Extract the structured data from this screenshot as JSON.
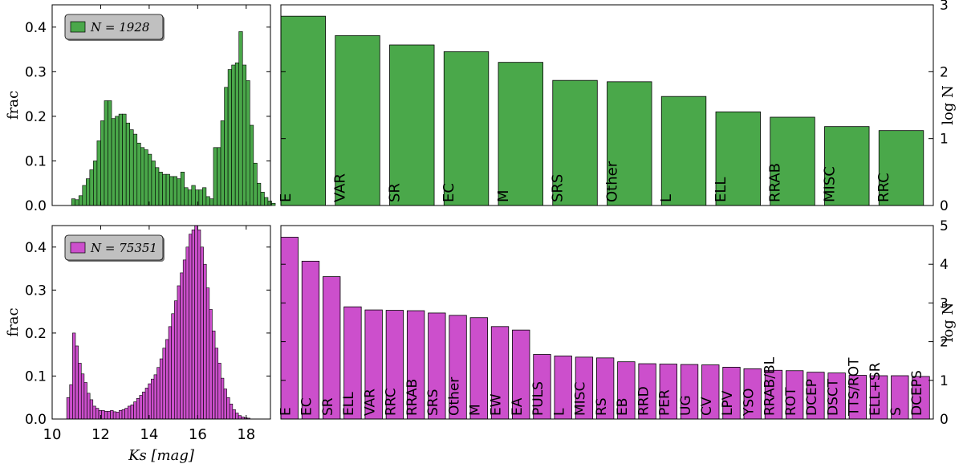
{
  "colors": {
    "green": "#4aa84a",
    "magenta": "#cc4fcc",
    "legend_bg": "#c0c0c0"
  },
  "chart_data": [
    {
      "id": "top_hist",
      "type": "bar",
      "variant": "histogram",
      "ylabel": "frac",
      "xlim": [
        10,
        19
      ],
      "ylim": [
        0,
        0.45
      ],
      "yticks": [
        0.0,
        0.1,
        0.2,
        0.3,
        0.4
      ],
      "bin_start": 10.8,
      "bin_width": 0.15,
      "values": [
        0.015,
        0.013,
        0.022,
        0.045,
        0.06,
        0.08,
        0.1,
        0.145,
        0.19,
        0.235,
        0.235,
        0.195,
        0.2,
        0.205,
        0.205,
        0.185,
        0.17,
        0.16,
        0.14,
        0.13,
        0.125,
        0.115,
        0.1,
        0.085,
        0.075,
        0.07,
        0.07,
        0.065,
        0.065,
        0.06,
        0.075,
        0.04,
        0.035,
        0.045,
        0.035,
        0.035,
        0.04,
        0.02,
        0.015,
        0.13,
        0.13,
        0.19,
        0.265,
        0.305,
        0.315,
        0.32,
        0.39,
        0.315,
        0.28,
        0.18,
        0.095,
        0.05,
        0.03,
        0.018,
        0.01,
        0.005
      ],
      "legend": "N = 1928",
      "color": "green"
    },
    {
      "id": "top_bar",
      "type": "bar",
      "ylabel": "log N",
      "ylim": [
        0,
        3
      ],
      "yticks": [
        0,
        1,
        2,
        3
      ],
      "categories": [
        "E",
        "VAR",
        "SR",
        "EC",
        "M",
        "SRS",
        "Other",
        "L",
        "ELL",
        "RRAB",
        "MISC",
        "RRC"
      ],
      "values": [
        2.83,
        2.54,
        2.4,
        2.3,
        2.14,
        1.87,
        1.85,
        1.63,
        1.4,
        1.32,
        1.18,
        1.12
      ],
      "color": "green"
    },
    {
      "id": "bottom_hist",
      "type": "bar",
      "variant": "histogram",
      "ylabel": "frac",
      "xlabel": "Ks [mag]",
      "xlim": [
        10,
        19
      ],
      "xticks": [
        10,
        12,
        14,
        16,
        18
      ],
      "ylim": [
        0,
        0.45
      ],
      "yticks": [
        0.0,
        0.1,
        0.2,
        0.3,
        0.4
      ],
      "bin_start": 10.6,
      "bin_width": 0.12,
      "values": [
        0.05,
        0.08,
        0.2,
        0.17,
        0.13,
        0.105,
        0.085,
        0.06,
        0.045,
        0.03,
        0.025,
        0.02,
        0.02,
        0.018,
        0.018,
        0.02,
        0.017,
        0.016,
        0.02,
        0.022,
        0.025,
        0.03,
        0.033,
        0.04,
        0.048,
        0.055,
        0.063,
        0.072,
        0.082,
        0.093,
        0.103,
        0.12,
        0.14,
        0.165,
        0.185,
        0.215,
        0.245,
        0.275,
        0.31,
        0.34,
        0.37,
        0.4,
        0.43,
        0.44,
        0.45,
        0.44,
        0.4,
        0.36,
        0.305,
        0.255,
        0.205,
        0.165,
        0.13,
        0.095,
        0.07,
        0.05,
        0.035,
        0.022,
        0.014,
        0.008,
        0.005,
        0.003,
        0.002
      ],
      "legend": "N = 75351",
      "color": "magenta"
    },
    {
      "id": "bottom_bar",
      "type": "bar",
      "ylabel": "log N",
      "ylim": [
        0,
        5
      ],
      "yticks": [
        0,
        1,
        2,
        3,
        4,
        5
      ],
      "categories": [
        "E",
        "EC",
        "SR",
        "ELL",
        "VAR",
        "RRC",
        "RRAB",
        "SRS",
        "Other",
        "M",
        "EW",
        "EA",
        "PULS",
        "L",
        "MISC",
        "RS",
        "EB",
        "RRD",
        "PER",
        "UG",
        "CV",
        "LPV",
        "YSO",
        "RRAB/BL",
        "ROT",
        "DCEP",
        "DSCT",
        "TTS/ROT",
        "ELL+SR",
        "S",
        "DCEPS"
      ],
      "values": [
        4.7,
        4.08,
        3.68,
        2.9,
        2.82,
        2.81,
        2.8,
        2.74,
        2.68,
        2.62,
        2.39,
        2.3,
        1.67,
        1.63,
        1.6,
        1.58,
        1.48,
        1.43,
        1.42,
        1.41,
        1.4,
        1.34,
        1.3,
        1.26,
        1.25,
        1.21,
        1.19,
        1.13,
        1.12,
        1.12,
        1.1
      ],
      "color": "magenta"
    }
  ]
}
